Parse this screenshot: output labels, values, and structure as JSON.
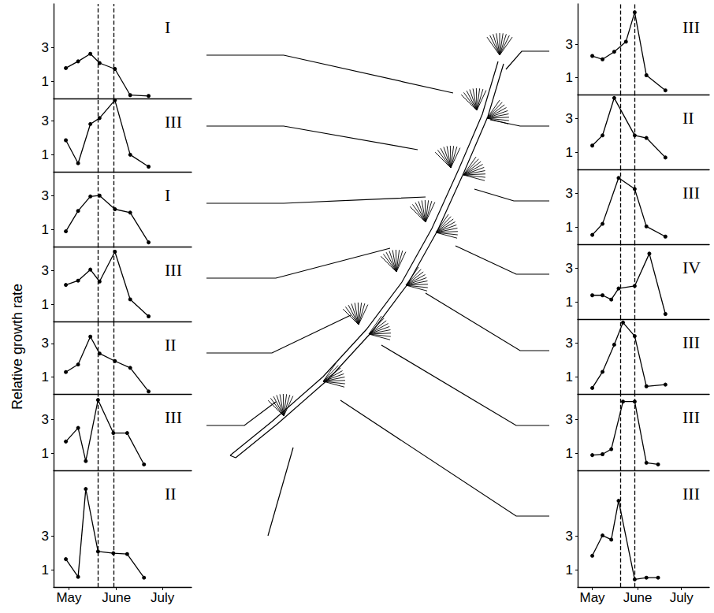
{
  "chart_data": [
    {
      "type": "line",
      "title": "I",
      "x": [
        13,
        21,
        29,
        35,
        45,
        55,
        67
      ],
      "values": [
        1.8,
        2.2,
        2.65,
        2.1,
        1.75,
        0.2,
        0.15
      ],
      "xlim": [
        5,
        95
      ],
      "ylim": [
        0,
        5.6
      ],
      "yticks": [
        1,
        3
      ],
      "vlines": [
        34,
        44
      ],
      "tick_labels": "y",
      "color": "#000000",
      "marker": "circle",
      "line_style": "solid"
    },
    {
      "type": "line",
      "title": "III",
      "x": [
        13,
        21,
        29,
        35,
        45,
        55,
        67
      ],
      "values": [
        1.85,
        0.5,
        2.8,
        3.15,
        4.2,
        1.0,
        0.3
      ],
      "xlim": [
        5,
        95
      ],
      "ylim": [
        0,
        4.3
      ],
      "yticks": [
        1,
        3
      ],
      "vlines": [
        34,
        44
      ],
      "tick_labels": "y",
      "color": "#000000",
      "marker": "circle",
      "line_style": "solid"
    },
    {
      "type": "line",
      "title": "I",
      "x": [
        13,
        21,
        29,
        35,
        45,
        55,
        67
      ],
      "values": [
        0.9,
        2.1,
        2.95,
        3.0,
        2.2,
        2.0,
        0.25
      ],
      "xlim": [
        5,
        95
      ],
      "ylim": [
        0,
        4.4
      ],
      "yticks": [
        1,
        3
      ],
      "vlines": [
        34,
        44
      ],
      "tick_labels": "y",
      "color": "#000000",
      "marker": "circle",
      "line_style": "solid"
    },
    {
      "type": "line",
      "title": "III",
      "x": [
        13,
        21,
        29,
        35,
        45,
        55,
        67
      ],
      "values": [
        2.15,
        2.4,
        3.05,
        2.35,
        4.1,
        1.3,
        0.3
      ],
      "xlim": [
        5,
        95
      ],
      "ylim": [
        0,
        4.4
      ],
      "yticks": [
        1,
        3
      ],
      "vlines": [
        34,
        44
      ],
      "tick_labels": "y",
      "color": "#000000",
      "marker": "circle",
      "line_style": "solid"
    },
    {
      "type": "line",
      "title": "II",
      "ylabel": "Relative growth rate",
      "x": [
        13,
        21,
        29,
        35,
        45,
        55,
        67
      ],
      "values": [
        1.3,
        1.75,
        3.4,
        2.4,
        1.95,
        1.55,
        0.15
      ],
      "xlim": [
        5,
        95
      ],
      "ylim": [
        0,
        4.3
      ],
      "yticks": [
        1,
        3
      ],
      "vlines": [
        34,
        44
      ],
      "tick_labels": "y",
      "color": "#000000",
      "marker": "circle",
      "line_style": "solid"
    },
    {
      "type": "line",
      "title": "III",
      "x": [
        13,
        21,
        26,
        34,
        44,
        53,
        64
      ],
      "values": [
        1.7,
        2.5,
        0.55,
        4.15,
        2.2,
        2.2,
        0.35
      ],
      "xlim": [
        5,
        95
      ],
      "ylim": [
        0,
        4.5
      ],
      "yticks": [
        1,
        3
      ],
      "vlines": [
        34,
        44
      ],
      "tick_labels": "y",
      "color": "#000000",
      "marker": "circle",
      "line_style": "solid"
    },
    {
      "type": "line",
      "title": "II",
      "x": [
        13,
        21,
        26,
        34,
        44,
        53,
        64
      ],
      "values": [
        1.65,
        0.6,
        5.8,
        2.1,
        2.0,
        1.95,
        0.55
      ],
      "xlim": [
        5,
        95
      ],
      "ylim": [
        0,
        6.9
      ],
      "yticks": [
        1,
        3
      ],
      "xticks": [
        {
          "value": 15,
          "label": "May"
        },
        {
          "value": 46,
          "label": "June"
        },
        {
          "value": 76,
          "label": "July"
        }
      ],
      "vlines": [
        34,
        44
      ],
      "color": "#000000",
      "marker": "circle",
      "line_style": "solid"
    },
    {
      "type": "line",
      "title": "III",
      "x": [
        15,
        22,
        30,
        38,
        44,
        52,
        65
      ],
      "values": [
        2.3,
        2.1,
        2.55,
        3.15,
        4.9,
        1.15,
        0.25
      ],
      "xlim": [
        5,
        95
      ],
      "ylim": [
        0,
        5.4
      ],
      "yticks": [
        1,
        3
      ],
      "vlines": [
        34,
        44
      ],
      "tick_labels": "y",
      "color": "#000000",
      "marker": "circle",
      "line_style": "solid"
    },
    {
      "type": "line",
      "title": "II",
      "x": [
        15,
        22,
        30,
        44,
        52,
        65
      ],
      "values": [
        1.4,
        2.0,
        4.2,
        2.0,
        1.85,
        0.7
      ],
      "xlim": [
        5,
        95
      ],
      "ylim": [
        0,
        4.4
      ],
      "yticks": [
        1,
        3
      ],
      "vlines": [
        34,
        44
      ],
      "tick_labels": "y",
      "color": "#000000",
      "marker": "circle",
      "line_style": "solid"
    },
    {
      "type": "line",
      "title": "III",
      "x": [
        15,
        22,
        33,
        44,
        52,
        65
      ],
      "values": [
        0.55,
        1.2,
        3.9,
        3.25,
        1.05,
        0.45
      ],
      "xlim": [
        5,
        95
      ],
      "ylim": [
        0,
        4.4
      ],
      "yticks": [
        1,
        3
      ],
      "vlines": [
        34,
        44
      ],
      "tick_labels": "y",
      "color": "#000000",
      "marker": "circle",
      "line_style": "solid"
    },
    {
      "type": "line",
      "title": "IV",
      "x": [
        15,
        22,
        28,
        33,
        44,
        54,
        65
      ],
      "values": [
        1.4,
        1.4,
        1.15,
        1.8,
        1.95,
        3.85,
        0.3
      ],
      "xlim": [
        5,
        95
      ],
      "ylim": [
        0,
        4.4
      ],
      "yticks": [
        1,
        3
      ],
      "vlines": [
        34,
        44
      ],
      "tick_labels": "y",
      "color": "#000000",
      "marker": "circle",
      "line_style": "solid"
    },
    {
      "type": "line",
      "title": "III",
      "x": [
        15,
        22,
        30,
        36,
        44,
        52,
        65
      ],
      "values": [
        0.35,
        1.3,
        2.9,
        4.2,
        3.4,
        0.45,
        0.55
      ],
      "xlim": [
        5,
        95
      ],
      "ylim": [
        0,
        4.4
      ],
      "yticks": [
        1,
        3
      ],
      "vlines": [
        34,
        44
      ],
      "tick_labels": "y",
      "color": "#000000",
      "marker": "circle",
      "line_style": "solid"
    },
    {
      "type": "line",
      "title": "III",
      "x": [
        15,
        22,
        28,
        36,
        44,
        52,
        60
      ],
      "values": [
        0.9,
        0.95,
        1.25,
        4.05,
        4.05,
        0.45,
        0.35
      ],
      "xlim": [
        5,
        95
      ],
      "ylim": [
        0,
        4.5
      ],
      "yticks": [
        1,
        3
      ],
      "vlines": [
        34,
        44
      ],
      "tick_labels": "y",
      "color": "#000000",
      "marker": "circle",
      "line_style": "solid"
    },
    {
      "type": "line",
      "title": "III",
      "x": [
        15,
        22,
        28,
        33,
        44,
        52,
        60
      ],
      "values": [
        1.85,
        3.05,
        2.8,
        5.1,
        0.45,
        0.55,
        0.55
      ],
      "xlim": [
        5,
        95
      ],
      "ylim": [
        0,
        6.9
      ],
      "yticks": [
        1,
        3
      ],
      "xticks": [
        {
          "value": 15,
          "label": "May"
        },
        {
          "value": 46,
          "label": "June"
        },
        {
          "value": 76,
          "label": "July"
        }
      ],
      "vlines": [
        34,
        44
      ],
      "color": "#000000",
      "marker": "circle",
      "line_style": "solid"
    }
  ]
}
